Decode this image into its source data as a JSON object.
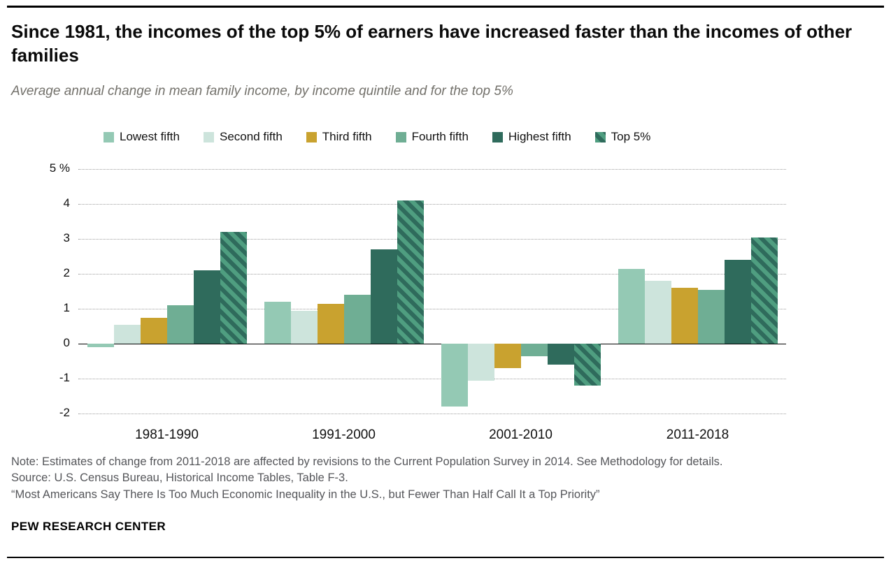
{
  "header": {
    "title": "Since 1981, the incomes of the top 5% of earners have increased faster than the incomes of other families",
    "subtitle": "Average annual change in mean family income, by income quintile and for the top 5%"
  },
  "chart_data": {
    "type": "bar",
    "categories": [
      "1981-1990",
      "1991-2000",
      "2001-2010",
      "2011-2018"
    ],
    "series": [
      {
        "name": "Lowest fifth",
        "color": "#94c9b4",
        "values": [
          -0.1,
          1.2,
          -1.8,
          2.15
        ]
      },
      {
        "name": "Second fifth",
        "color": "#cde4dc",
        "values": [
          0.55,
          0.95,
          -1.05,
          1.8
        ]
      },
      {
        "name": "Third fifth",
        "color": "#c9a22f",
        "values": [
          0.75,
          1.15,
          -0.7,
          1.6
        ]
      },
      {
        "name": "Fourth fifth",
        "color": "#6fae94",
        "values": [
          1.1,
          1.4,
          -0.35,
          1.55
        ]
      },
      {
        "name": "Highest fifth",
        "color": "#2f6b5c",
        "values": [
          2.1,
          2.7,
          -0.6,
          2.4
        ]
      },
      {
        "name": "Top 5%",
        "color": "#4f9e80",
        "pattern": "diagonal-stripes",
        "pattern_color": "#2f6b5c",
        "values": [
          3.2,
          4.1,
          -1.2,
          3.05
        ]
      }
    ],
    "title": "Since 1981, the incomes of the top 5% of earners have increased faster than the incomes of other families",
    "xlabel": "",
    "ylabel": "",
    "ylim": [
      -2,
      5
    ],
    "yticks": [
      {
        "value": 5,
        "label": "5 %"
      },
      {
        "value": 4,
        "label": "4"
      },
      {
        "value": 3,
        "label": "3"
      },
      {
        "value": 2,
        "label": "2"
      },
      {
        "value": 1,
        "label": "1"
      },
      {
        "value": 0,
        "label": "0"
      },
      {
        "value": -1,
        "label": "-1"
      },
      {
        "value": -2,
        "label": "-2"
      }
    ],
    "grid": "horizontal-dotted",
    "legend_position": "top"
  },
  "notes": {
    "note": "Note: Estimates of change from 2011-2018 are affected by revisions to the Current Population Survey in 2014. See Methodology for details.",
    "source": "Source: U.S. Census Bureau, Historical Income Tables, Table F-3.",
    "quote": "“Most Americans Say There Is Too Much Economic Inequality in the U.S., but Fewer Than Half Call It a Top Priority”"
  },
  "footer": {
    "brand": "PEW RESEARCH CENTER"
  }
}
